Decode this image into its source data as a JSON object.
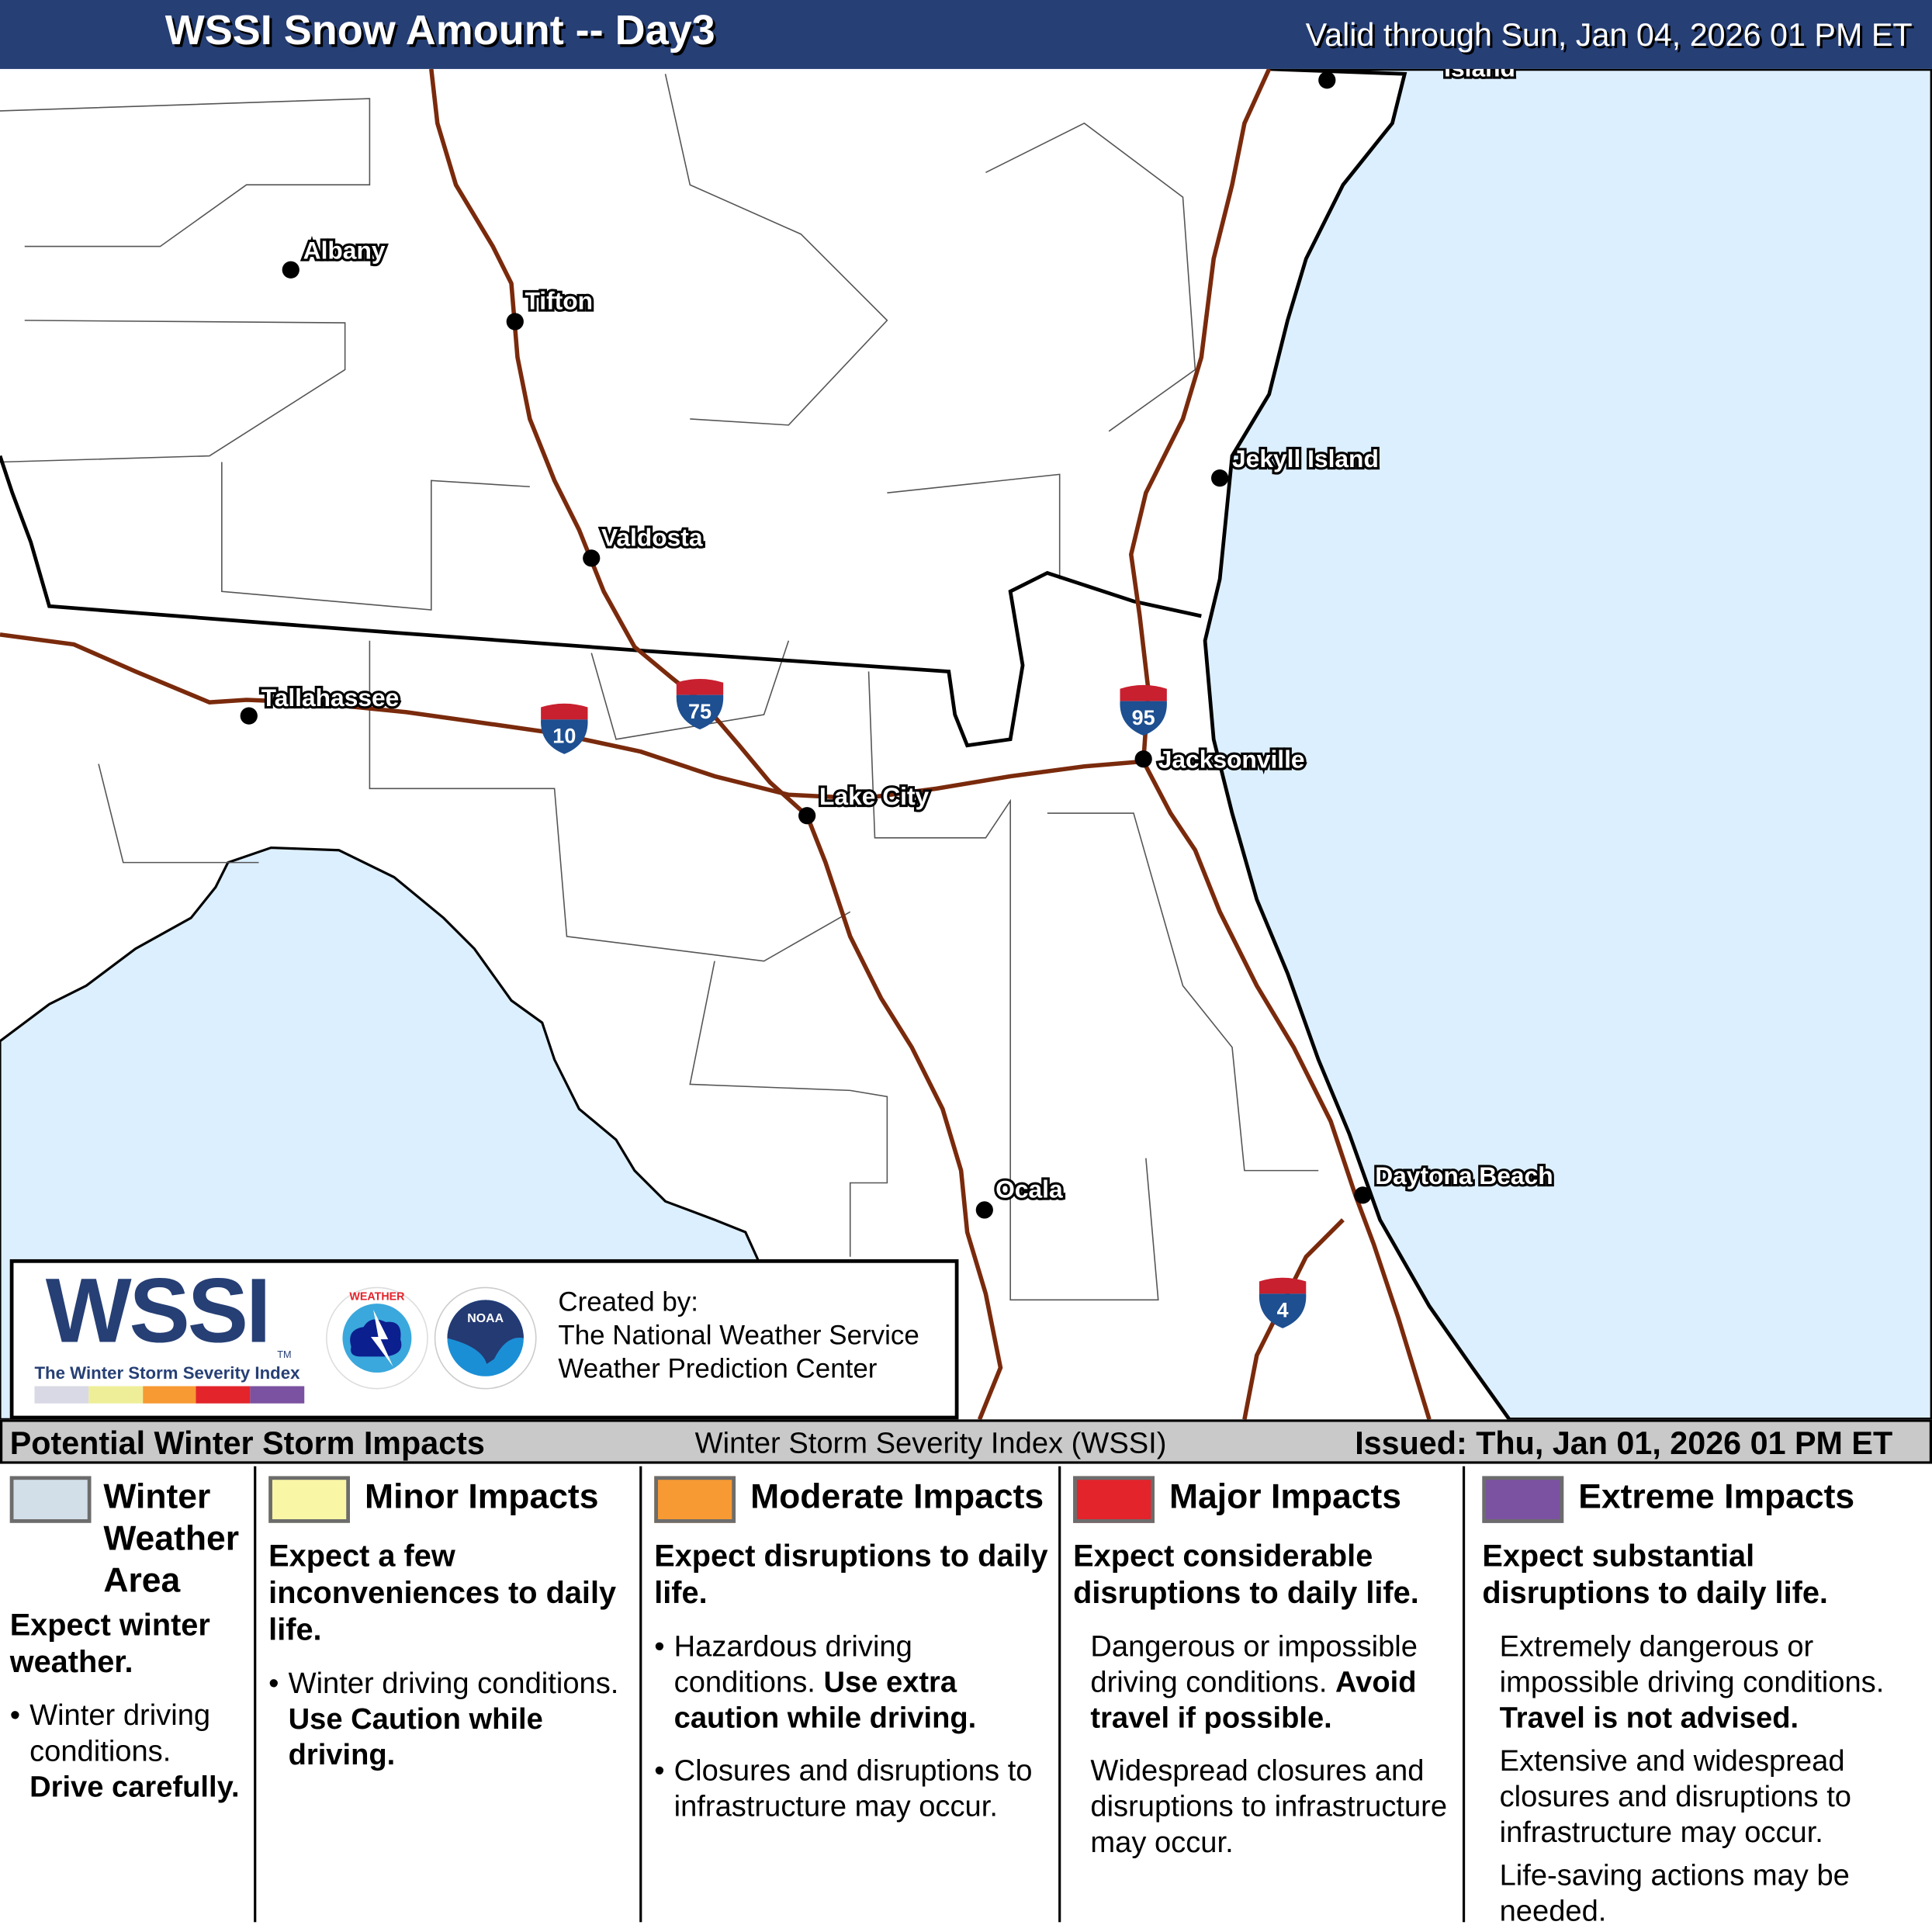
{
  "header": {
    "title": "WSSI Snow Amount -- Day3",
    "valid": "Valid through Sun, Jan 04, 2026 01 PM ET"
  },
  "map": {
    "colors": {
      "ocean": "#dcefff",
      "land": "#ffffff",
      "interstate": "#7a2a0c",
      "state_line": "#000000",
      "county_line": "#444444"
    },
    "cities": [
      {
        "name": "Albany"
      },
      {
        "name": "Tifton"
      },
      {
        "name": "Valdosta"
      },
      {
        "name": "Tallahassee"
      },
      {
        "name": "Lake City"
      },
      {
        "name": "Jacksonville"
      },
      {
        "name": "Jekyll Island"
      },
      {
        "name": "Ocala"
      },
      {
        "name": "Daytona Beach"
      },
      {
        "name": "Island"
      }
    ],
    "interstates": [
      "10",
      "75",
      "95",
      "4"
    ]
  },
  "logo": {
    "wssi": "WSSI",
    "tm": "TM",
    "subtitle": "The Winter Storm Severity Index",
    "nws_seal": "National Weather Service",
    "noaa_seal": "NOAA",
    "colorbar": [
      "#d9d9e6",
      "#eeee99",
      "#f79a33",
      "#e3242b",
      "#7b52a1"
    ],
    "created_by": "Created by:",
    "org1": "The National Weather Service",
    "org2": "Weather Prediction Center"
  },
  "impact_bar": {
    "left": "Potential Winter Storm Impacts",
    "center": "Winter Storm Severity Index (WSSI)",
    "right": "Issued: Thu, Jan 01, 2026 01 PM ET"
  },
  "legend": [
    {
      "color": "#d3dfe8",
      "title1": "Winter",
      "title2": "Weather",
      "title3": "Area",
      "expect": "Expect winter weather.",
      "b1": "Winter driving conditions.",
      "b1_bold": "Drive carefully."
    },
    {
      "color": "#f9f6a5",
      "title": "Minor Impacts",
      "expect": "Expect a few inconveniences to daily life.",
      "b1": "Winter driving conditions.",
      "b1_bold": "Use Caution while driving."
    },
    {
      "color": "#f79a33",
      "title": "Moderate Impacts",
      "expect": "Expect disruptions to daily life.",
      "b1": "Hazardous driving conditions.",
      "b1_bold": "Use extra caution while driving.",
      "b2": "Closures and disruptions to infrastructure may occur."
    },
    {
      "color": "#e3242b",
      "title": "Major Impacts",
      "expect": "Expect considerable disruptions to daily life.",
      "p1": "Dangerous or impossible driving conditions.",
      "p1_bold": "Avoid travel if possible.",
      "p2": "Widespread closures and disruptions to infrastructure may occur."
    },
    {
      "color": "#7b52a1",
      "title": "Extreme Impacts",
      "expect": "Expect substantial disruptions to daily life.",
      "p1": "Extremely dangerous or impossible driving conditions.",
      "p1_bold": "Travel is not advised.",
      "p2": "Extensive and widespread closures and disruptions to infrastructure may occur.",
      "p3": "Life-saving actions may be needed."
    }
  ]
}
